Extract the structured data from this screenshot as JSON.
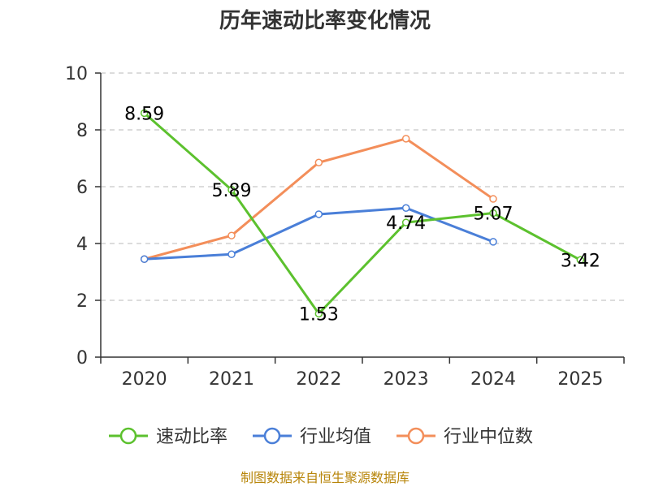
{
  "chart_data": {
    "type": "line",
    "title": "历年速动比率变化情况",
    "categories": [
      "2020",
      "2021",
      "2022",
      "2023",
      "2024",
      "2025"
    ],
    "ylim": [
      0,
      10
    ],
    "yticks": [
      "0",
      "2",
      "4",
      "6",
      "8",
      "10"
    ],
    "grid": true,
    "legend_position": "bottom",
    "series": [
      {
        "name": "速动比率",
        "color": "#5cc12e",
        "values": [
          8.59,
          5.89,
          1.53,
          4.74,
          5.07,
          3.42
        ],
        "labels": [
          "8.59",
          "5.89",
          "1.53",
          "4.74",
          "5.07",
          "3.42"
        ]
      },
      {
        "name": "行业均值",
        "color": "#4a7fd8",
        "values": [
          3.45,
          3.62,
          5.03,
          5.25,
          4.06,
          null
        ]
      },
      {
        "name": "行业中位数",
        "color": "#f38e5a",
        "values": [
          3.45,
          4.28,
          6.85,
          7.69,
          5.57,
          null
        ]
      }
    ]
  },
  "source": "制图数据来自恒生聚源数据库"
}
